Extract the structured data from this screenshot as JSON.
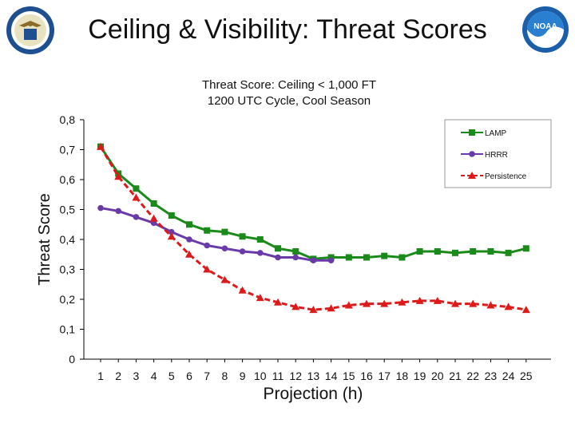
{
  "slide": {
    "title": "Ceiling & Visibility: Threat Scores",
    "logo_left_icon": "department-of-commerce-seal-icon",
    "logo_right_icon": "noaa-logo-icon",
    "logo_right_text": "NOAA"
  },
  "chart_data": {
    "type": "line",
    "title": "Threat Score: Ceiling < 1,000 FT",
    "subtitle": "1200 UTC Cycle, Cool Season",
    "xlabel": "Projection (h)",
    "ylabel": "Threat Score",
    "x": [
      1,
      2,
      3,
      4,
      5,
      6,
      7,
      8,
      9,
      10,
      11,
      12,
      13,
      14,
      15,
      16,
      17,
      18,
      19,
      20,
      21,
      22,
      23,
      24,
      25
    ],
    "ylim": [
      0,
      0.8
    ],
    "yticks": [
      0,
      0.1,
      0.2,
      0.3,
      0.4,
      0.5,
      0.6,
      0.7,
      0.8
    ],
    "ytick_labels": [
      "0",
      "0,1",
      "0,2",
      "0,3",
      "0,4",
      "0,5",
      "0,6",
      "0,7",
      "0,8"
    ],
    "grid": false,
    "legend": "top-right",
    "series": [
      {
        "name": "LAMP",
        "color": "#1a8a1a",
        "marker": "square",
        "style": "solid",
        "values": [
          0.71,
          0.62,
          0.57,
          0.52,
          0.48,
          0.45,
          0.43,
          0.425,
          0.41,
          0.4,
          0.37,
          0.36,
          0.335,
          0.34,
          0.34,
          0.34,
          0.345,
          0.34,
          0.36,
          0.36,
          0.355,
          0.36,
          0.36,
          0.355,
          0.37
        ]
      },
      {
        "name": "HRRR",
        "color": "#6a3aa8",
        "marker": "circle",
        "style": "solid",
        "values": [
          0.505,
          0.495,
          0.475,
          0.455,
          0.425,
          0.4,
          0.38,
          0.37,
          0.36,
          0.355,
          0.34,
          0.34,
          0.33,
          0.33,
          null,
          null,
          null,
          null,
          null,
          null,
          null,
          null,
          null,
          null,
          null
        ]
      },
      {
        "name": "Persistence",
        "color": "#dd1a1a",
        "marker": "triangle",
        "style": "dashed",
        "values": [
          0.71,
          0.61,
          0.54,
          0.47,
          0.41,
          0.35,
          0.3,
          0.265,
          0.23,
          0.205,
          0.19,
          0.175,
          0.165,
          0.17,
          0.18,
          0.185,
          0.185,
          0.19,
          0.195,
          0.195,
          0.185,
          0.185,
          0.18,
          0.175,
          0.165
        ]
      }
    ]
  }
}
